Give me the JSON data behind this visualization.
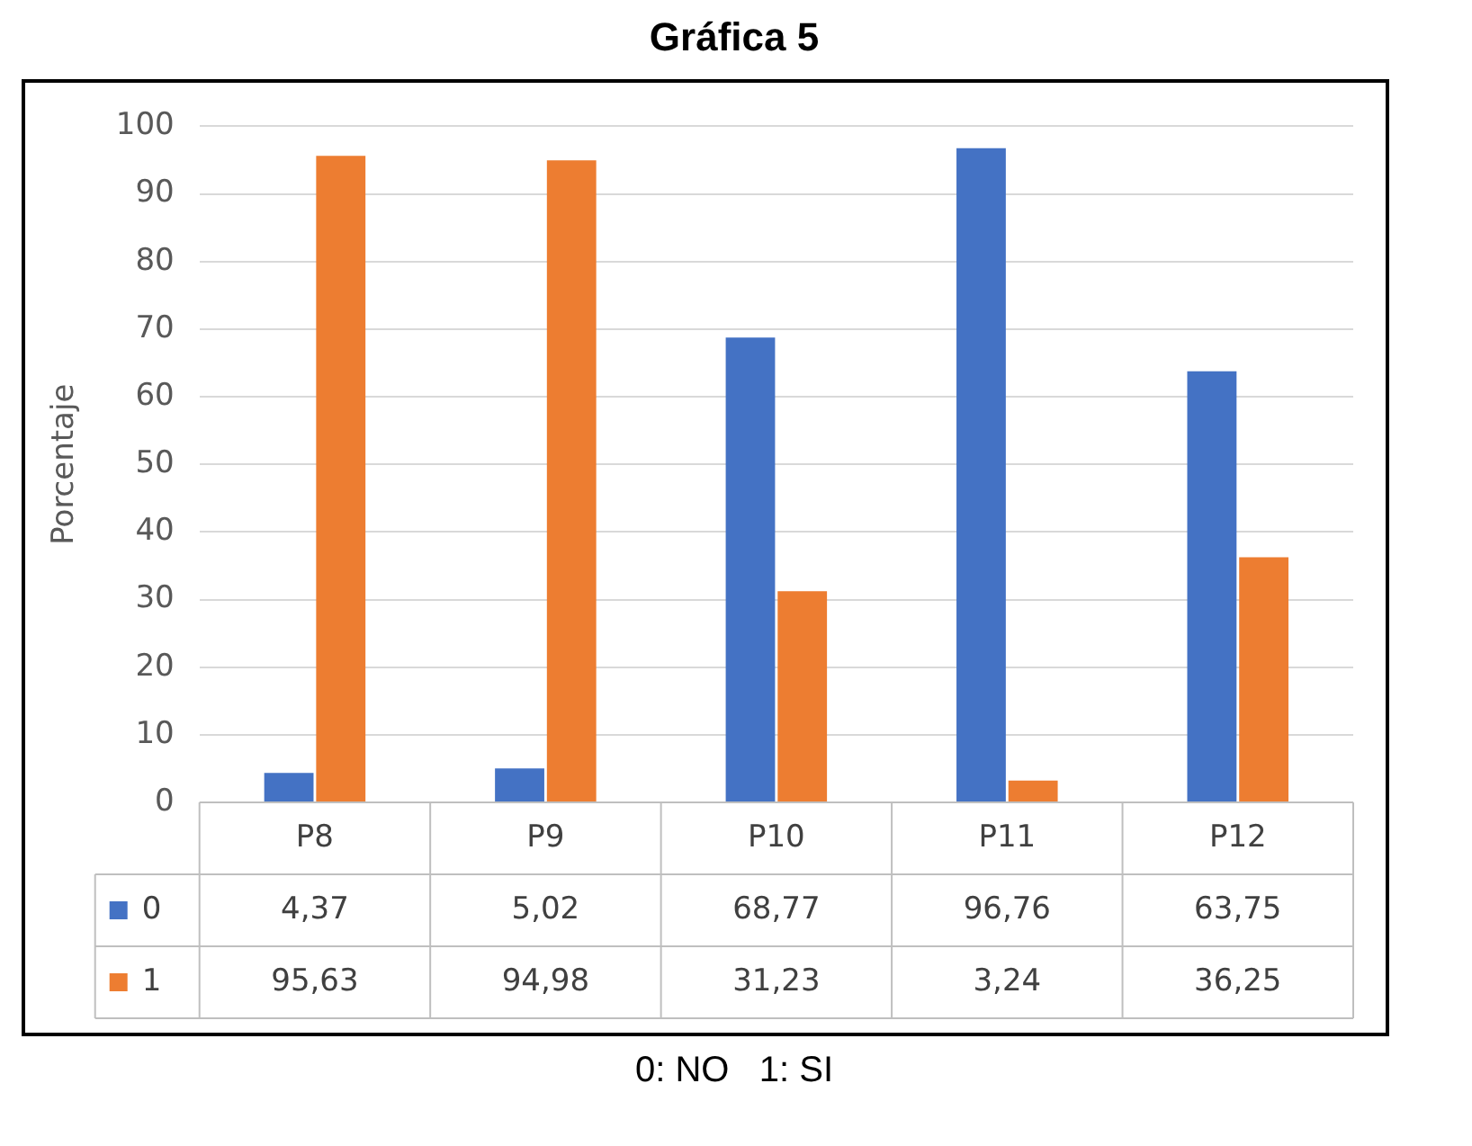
{
  "chart_data": {
    "type": "bar",
    "title": "Gráfica 5",
    "ylabel": "Porcentaje",
    "categories": [
      "P8",
      "P9",
      "P10",
      "P11",
      "P12"
    ],
    "series": [
      {
        "name": "0",
        "color": "#4472c4",
        "values": [
          4.37,
          5.02,
          68.77,
          96.76,
          63.75
        ],
        "value_labels": [
          "4,37",
          "5,02",
          "68,77",
          "96,76",
          "63,75"
        ]
      },
      {
        "name": "1",
        "color": "#ed7d31",
        "values": [
          95.63,
          94.98,
          31.23,
          3.24,
          36.25
        ],
        "value_labels": [
          "95,63",
          "94,98",
          "31,23",
          "3,24",
          "36,25"
        ]
      }
    ],
    "ylim": [
      0,
      100
    ],
    "yticks": [
      0,
      10,
      20,
      30,
      40,
      50,
      60,
      70,
      80,
      90,
      100
    ],
    "grid": "y",
    "legend": "bottom",
    "annotations": [
      "0: NO   1: SI"
    ]
  }
}
